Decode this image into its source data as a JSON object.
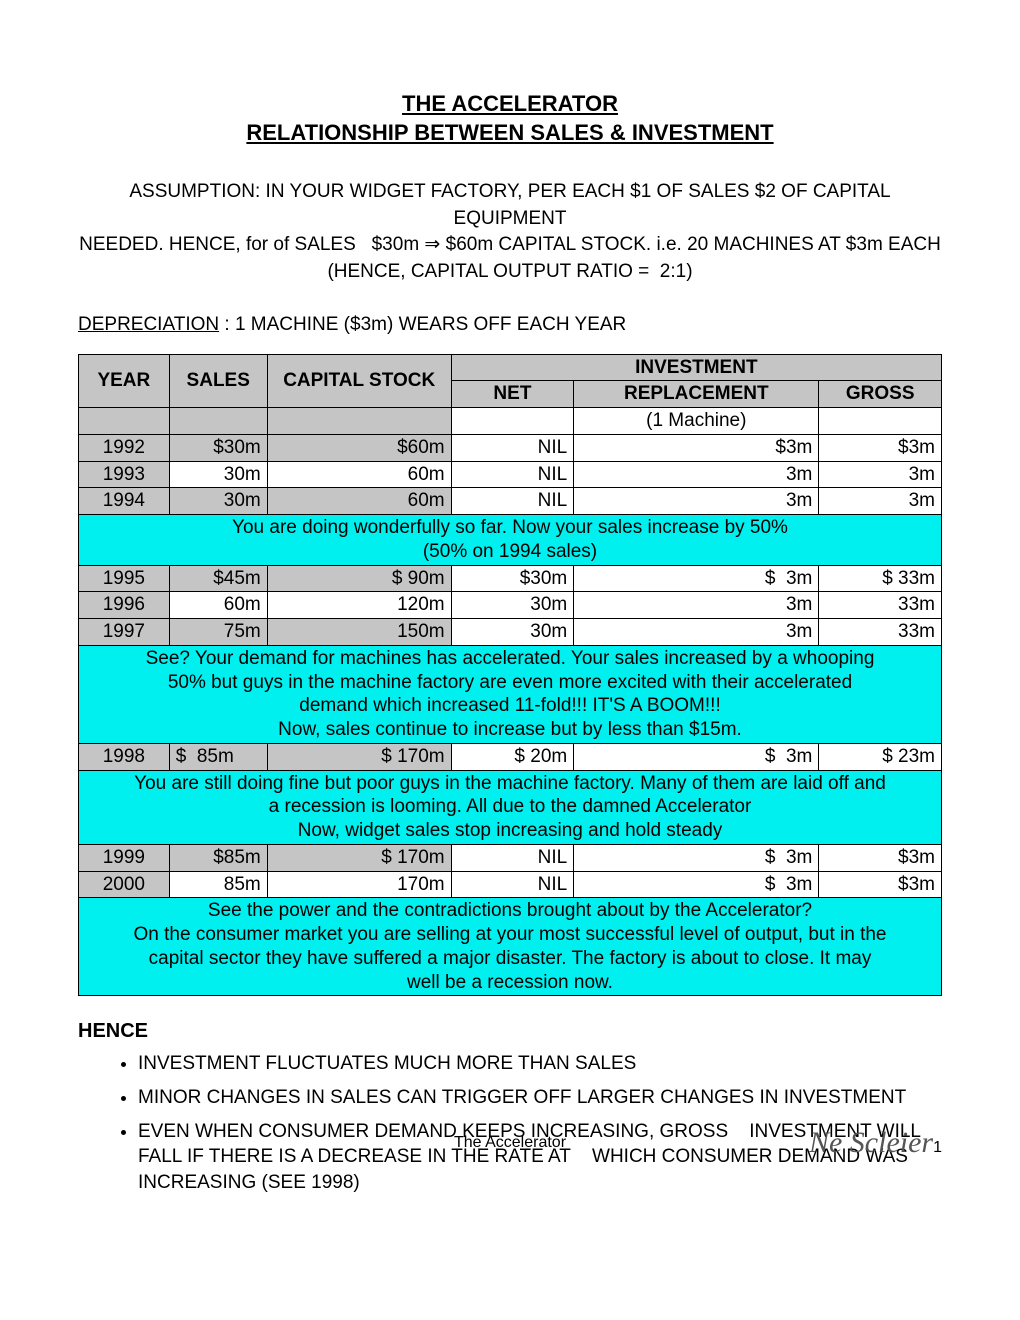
{
  "title_line1": "THE ACCELERATOR",
  "title_line2": "RELATIONSHIP BETWEEN SALES & INVESTMENT",
  "assumption_1": "ASSUMPTION: IN YOUR WIDGET FACTORY, PER EACH $1 OF SALES $2 OF CAPITAL EQUIPMENT",
  "assumption_2": "NEEDED. HENCE, for of SALES   $30m ⇒ $60m CAPITAL STOCK. i.e. 20 MACHINES AT $3m EACH",
  "assumption_3": "(HENCE, CAPITAL OUTPUT RATIO =  2:1)",
  "depreciation_label": "DEPRECIATION",
  "depreciation_text": " : 1 MACHINE ($3m) WEARS OFF EACH YEAR",
  "headers": {
    "year": "YEAR",
    "sales": "SALES",
    "capital": "CAPITAL STOCK",
    "investment": "INVESTMENT",
    "net": "NET",
    "replacement": "REPLACEMENT",
    "gross": "GROSS"
  },
  "sub_replacement": "(1 Machine)",
  "colors": {
    "gray": "#c5c5c5",
    "cyan": "#00f0f0",
    "border": "#000000",
    "background": "#ffffff"
  },
  "rows": [
    {
      "year": "1992",
      "sales": "$30m",
      "capital": "$60m",
      "net": "NIL",
      "rep": "$3m",
      "gross": "$3m",
      "bg": "gray"
    },
    {
      "year": "1993",
      "sales": "30m",
      "capital": "60m",
      "net": "NIL",
      "rep": "3m",
      "gross": "3m",
      "bg": "white"
    },
    {
      "year": "1994",
      "sales": "30m",
      "capital": "60m",
      "net": "NIL",
      "rep": "3m",
      "gross": "3m",
      "bg": "gray"
    }
  ],
  "note1_l1": "You are doing wonderfully so far. Now your sales increase by 50%",
  "note1_l2": "(50% on 1994 sales)",
  "rows2": [
    {
      "year": "1995",
      "sales": "$45m",
      "capital": "$ 90m",
      "net": "$30m",
      "rep": "$  3m",
      "gross": "$ 33m",
      "bg": "gray"
    },
    {
      "year": "1996",
      "sales": "60m",
      "capital": "120m",
      "net": "30m",
      "rep": "3m",
      "gross": "33m",
      "bg": "white"
    },
    {
      "year": "1997",
      "sales": "75m",
      "capital": "150m",
      "net": "30m",
      "rep": "3m",
      "gross": "33m",
      "bg": "gray"
    }
  ],
  "note2_l1": "See? Your demand for machines has accelerated. Your sales increased by a whooping",
  "note2_l2": "50% but guys in the machine factory are even more excited with their accelerated",
  "note2_l3": "demand which increased 11-fold!!! IT'S A BOOM!!!",
  "note2_l4": "Now, sales continue to increase but by less than $15m.",
  "rows3": [
    {
      "year": "1998",
      "sales": "$  85m",
      "capital": "$ 170m",
      "net": "$ 20m",
      "rep": "$  3m",
      "gross": "$ 23m",
      "bg": "gray"
    }
  ],
  "note3_l1": "You are still doing fine but poor guys in the machine factory. Many of them are laid off and",
  "note3_l2": "a recession is looming. All due to the damned Accelerator",
  "note3_l3": "Now, widget sales stop increasing and hold steady",
  "rows4": [
    {
      "year": "1999",
      "sales": "$85m",
      "capital": "$ 170m",
      "net": "NIL",
      "rep": "$  3m",
      "gross": "$3m",
      "bg": "gray"
    },
    {
      "year": "2000",
      "sales": "85m",
      "capital": "170m",
      "net": "NIL",
      "rep": "$  3m",
      "gross": "$3m",
      "bg": "white"
    }
  ],
  "note4_l1": "See the power and the contradictions brought about by the Accelerator?",
  "note4_l2": "On the consumer market you are selling at your most successful level of output, but in the",
  "note4_l3": "capital sector they have suffered a major disaster. The factory is about to close. It may",
  "note4_l4": "well be a recession now.",
  "hence": "HENCE",
  "bullets": [
    "INVESTMENT FLUCTUATES MUCH MORE THAN SALES",
    "MINOR CHANGES IN SALES CAN TRIGGER OFF LARGER CHANGES IN INVESTMENT",
    "EVEN WHEN CONSUMER DEMAND KEEPS INCREASING, GROSS    INVESTMENT WILL FALL IF THERE IS A DECREASE IN THE RATE AT    WHICH CONSUMER DEMAND WAS INCREASING (SEE 1998)"
  ],
  "footer": "The Accelerator",
  "page_number": "1",
  "signature_text": "Ne Scleier"
}
